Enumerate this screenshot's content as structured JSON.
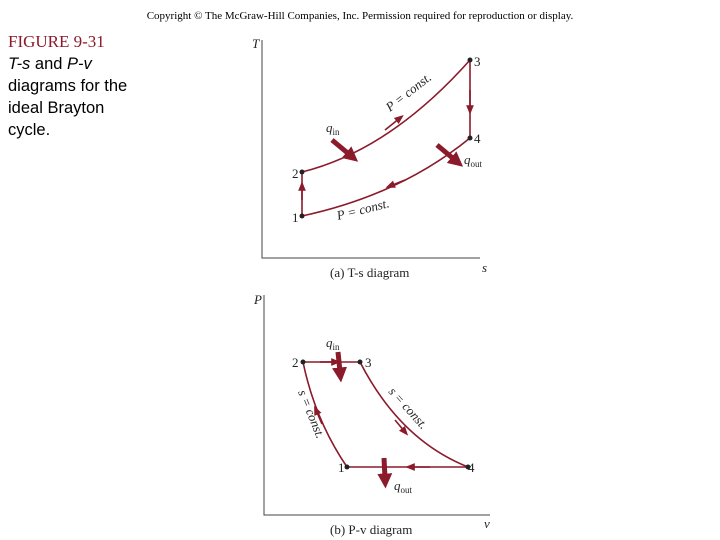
{
  "copyright": "Copyright © The McGraw-Hill Companies, Inc. Permission required for reproduction or display.",
  "figure": {
    "number": "FIGURE 9-31",
    "caption": {
      "first_line": [
        "T-s",
        "and",
        "P-v"
      ],
      "lines": [
        "diagrams for the",
        "ideal Brayton",
        "cycle."
      ]
    }
  },
  "ts_diagram": {
    "y_axis": "T",
    "x_axis": "s",
    "points": [
      "1",
      "2",
      "3",
      "4"
    ],
    "upper_curve": "P = const.",
    "lower_curve": "P = const.",
    "heat_in": {
      "symbol": "q",
      "subscript": "in"
    },
    "heat_out": {
      "symbol": "q",
      "subscript": "out"
    },
    "caption": "(a) T-s diagram"
  },
  "pv_diagram": {
    "y_axis": "P",
    "x_axis": "v",
    "points": [
      "1",
      "2",
      "3",
      "4"
    ],
    "left_curve": "s = const.",
    "right_curve": "s = const.",
    "heat_in": {
      "symbol": "q",
      "subscript": "in"
    },
    "heat_out": {
      "symbol": "q",
      "subscript": "out"
    },
    "caption": "(b) P-v diagram"
  }
}
